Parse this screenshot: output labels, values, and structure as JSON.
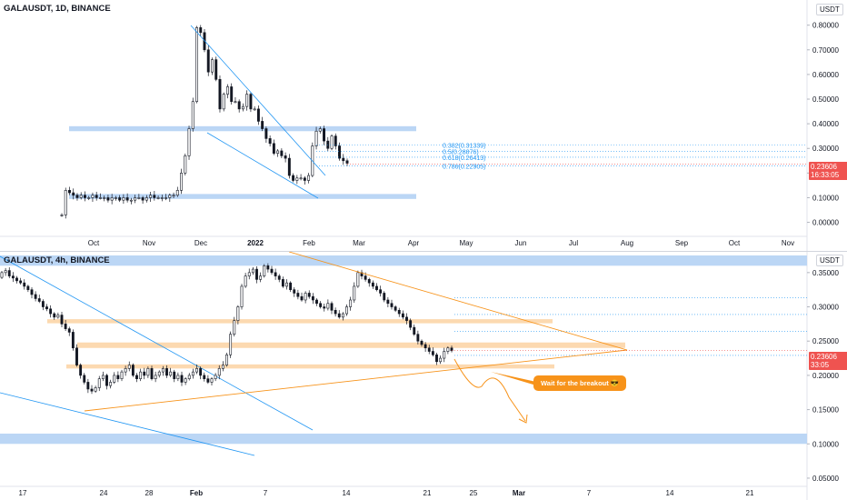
{
  "colors": {
    "up": "#131722",
    "down": "#131722",
    "blue_band": "#bbd6f5",
    "blue_line": "#2196f3",
    "orange": "#f7931a",
    "orange_band": "#fcd9b0",
    "price_tag": "#ef5350",
    "fib": "#2196f3",
    "axis_text": "#131722"
  },
  "top": {
    "legend": "GALAUSDT, 1D, BINANCE",
    "unit": "USDT",
    "price_tag": {
      "price": "0.23606",
      "timer": "16:33:05"
    },
    "fib_levels": [
      {
        "label": "0.382(0.31339)",
        "value": 0.31339
      },
      {
        "label": "0.5(0.28876)",
        "value": 0.28876
      },
      {
        "label": "0.618(0.26413)",
        "value": 0.26413
      },
      {
        "label": "0.786(0.22905)",
        "value": 0.22905
      }
    ],
    "icons": {
      "marker": "horizontal-line-icon"
    }
  },
  "bottom": {
    "legend": "GALAUSDT, 4h, BINANCE",
    "unit": "USDT",
    "price_tag": {
      "price": "0.23606",
      "timer": "33:05"
    },
    "callout": "Wait for the breakout 😎"
  },
  "chart_data": [
    {
      "type": "candlestick",
      "title": "GALAUSDT, 1D, BINANCE",
      "x_ticks": [
        "Oct",
        "Nov",
        "Dec",
        "2022",
        "Feb",
        "Mar",
        "Apr",
        "May",
        "Jun",
        "Jul",
        "Aug",
        "Sep",
        "Oct",
        "Nov"
      ],
      "y_ticks": [
        "0.80000",
        "0.70000",
        "0.60000",
        "0.50000",
        "0.40000",
        "0.30000",
        "0.20000",
        "0.10000",
        "0.00000"
      ],
      "ylim": [
        -0.02,
        0.88
      ],
      "close_series": [
        0.03,
        0.13,
        0.12,
        0.11,
        0.1,
        0.11,
        0.1,
        0.1,
        0.11,
        0.1,
        0.1,
        0.1,
        0.09,
        0.1,
        0.1,
        0.09,
        0.1,
        0.09,
        0.09,
        0.1,
        0.1,
        0.09,
        0.1,
        0.11,
        0.1,
        0.1,
        0.1,
        0.1,
        0.11,
        0.11,
        0.13,
        0.2,
        0.27,
        0.38,
        0.49,
        0.79,
        0.77,
        0.7,
        0.61,
        0.66,
        0.58,
        0.46,
        0.52,
        0.55,
        0.49,
        0.49,
        0.46,
        0.47,
        0.52,
        0.46,
        0.46,
        0.41,
        0.38,
        0.34,
        0.32,
        0.28,
        0.29,
        0.27,
        0.26,
        0.19,
        0.17,
        0.18,
        0.18,
        0.17,
        0.19,
        0.31,
        0.37,
        0.38,
        0.33,
        0.3,
        0.35,
        0.31,
        0.26,
        0.25,
        0.24
      ],
      "zones": [
        {
          "kind": "resistance",
          "low": 0.37,
          "high": 0.39
        },
        {
          "kind": "support",
          "low": 0.095,
          "high": 0.115
        }
      ],
      "current_price": 0.23606
    },
    {
      "type": "candlestick",
      "title": "GALAUSDT, 4h, BINANCE",
      "x_ticks": [
        "17",
        "24",
        "28",
        "Feb",
        "7",
        "14",
        "21",
        "25",
        "Mar",
        "7",
        "14",
        "21"
      ],
      "y_ticks": [
        "0.35000",
        "0.30000",
        "0.25000",
        "0.20000",
        "0.15000",
        "0.10000",
        "0.05000"
      ],
      "ylim": [
        0.038,
        0.375
      ],
      "close_series": [
        0.35,
        0.353,
        0.345,
        0.342,
        0.338,
        0.335,
        0.33,
        0.325,
        0.318,
        0.312,
        0.308,
        0.3,
        0.297,
        0.29,
        0.285,
        0.288,
        0.275,
        0.268,
        0.263,
        0.24,
        0.215,
        0.2,
        0.19,
        0.18,
        0.177,
        0.182,
        0.195,
        0.2,
        0.185,
        0.19,
        0.2,
        0.195,
        0.205,
        0.21,
        0.215,
        0.2,
        0.195,
        0.205,
        0.2,
        0.21,
        0.195,
        0.2,
        0.205,
        0.21,
        0.2,
        0.205,
        0.195,
        0.2,
        0.19,
        0.195,
        0.2,
        0.205,
        0.21,
        0.2,
        0.195,
        0.19,
        0.195,
        0.2,
        0.21,
        0.215,
        0.23,
        0.26,
        0.28,
        0.3,
        0.33,
        0.345,
        0.35,
        0.355,
        0.34,
        0.345,
        0.36,
        0.355,
        0.35,
        0.345,
        0.34,
        0.33,
        0.335,
        0.325,
        0.32,
        0.315,
        0.31,
        0.32,
        0.315,
        0.31,
        0.305,
        0.3,
        0.298,
        0.305,
        0.295,
        0.29,
        0.285,
        0.29,
        0.3,
        0.31,
        0.33,
        0.35,
        0.345,
        0.34,
        0.335,
        0.33,
        0.325,
        0.32,
        0.31,
        0.305,
        0.3,
        0.295,
        0.29,
        0.285,
        0.28,
        0.27,
        0.26,
        0.25,
        0.245,
        0.24,
        0.235,
        0.23,
        0.22,
        0.225,
        0.235,
        0.24,
        0.236
      ],
      "zones": [
        {
          "kind": "resistance",
          "low": 0.276,
          "high": 0.282
        },
        {
          "kind": "resistance",
          "low": 0.24,
          "high": 0.248
        },
        {
          "kind": "support",
          "low": 0.21,
          "high": 0.216
        },
        {
          "kind": "support_blue",
          "low": 0.1,
          "high": 0.115
        },
        {
          "kind": "top_blue",
          "low": 0.36,
          "high": 0.375
        }
      ],
      "dotted_levels": [
        0.3135,
        0.2888,
        0.2641,
        0.2291
      ],
      "current_price": 0.23606
    }
  ]
}
